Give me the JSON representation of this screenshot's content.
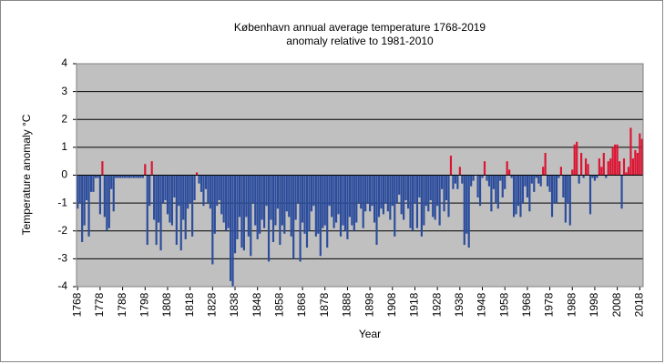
{
  "chart_data": {
    "type": "bar",
    "title": "København  annual average  temperature 1768-2019",
    "subtitle": "anomaly relative to 1981-2010",
    "x_label": "Year",
    "y_label": "Temperature anomaly °C",
    "color": "#2b4c9c",
    "positive_color": "#dc1432",
    "grid": true,
    "xlim": [
      1767.5,
      2019.5
    ],
    "ylim": [
      -4,
      4
    ],
    "yticks": [
      -4,
      -3,
      -2,
      -1,
      0,
      1,
      2,
      3,
      4
    ],
    "xticks": [
      1768,
      1778,
      1788,
      1798,
      1808,
      1818,
      1828,
      1838,
      1848,
      1858,
      1868,
      1878,
      1888,
      1898,
      1908,
      1918,
      1928,
      1938,
      1948,
      1958,
      1968,
      1978,
      1988,
      1998,
      2008,
      2018
    ],
    "x": [
      1768,
      1769,
      1770,
      1771,
      1772,
      1773,
      1774,
      1775,
      1776,
      1777,
      1778,
      1779,
      1780,
      1781,
      1782,
      1783,
      1784,
      1785,
      1786,
      1787,
      1788,
      1789,
      1790,
      1791,
      1792,
      1793,
      1794,
      1795,
      1796,
      1797,
      1798,
      1799,
      1800,
      1801,
      1802,
      1803,
      1804,
      1805,
      1806,
      1807,
      1808,
      1809,
      1810,
      1811,
      1812,
      1813,
      1814,
      1815,
      1816,
      1817,
      1818,
      1819,
      1820,
      1821,
      1822,
      1823,
      1824,
      1825,
      1826,
      1827,
      1828,
      1829,
      1830,
      1831,
      1832,
      1833,
      1834,
      1835,
      1836,
      1837,
      1838,
      1839,
      1840,
      1841,
      1842,
      1843,
      1844,
      1845,
      1846,
      1847,
      1848,
      1849,
      1850,
      1851,
      1852,
      1853,
      1854,
      1855,
      1856,
      1857,
      1858,
      1859,
      1860,
      1861,
      1862,
      1863,
      1864,
      1865,
      1866,
      1867,
      1868,
      1869,
      1870,
      1871,
      1872,
      1873,
      1874,
      1875,
      1876,
      1877,
      1878,
      1879,
      1880,
      1881,
      1882,
      1883,
      1884,
      1885,
      1886,
      1887,
      1888,
      1889,
      1890,
      1891,
      1892,
      1893,
      1894,
      1895,
      1896,
      1897,
      1898,
      1899,
      1900,
      1901,
      1902,
      1903,
      1904,
      1905,
      1906,
      1907,
      1908,
      1909,
      1910,
      1911,
      1912,
      1913,
      1914,
      1915,
      1916,
      1917,
      1918,
      1919,
      1920,
      1921,
      1922,
      1923,
      1924,
      1925,
      1926,
      1927,
      1928,
      1929,
      1930,
      1931,
      1932,
      1933,
      1934,
      1935,
      1936,
      1937,
      1938,
      1939,
      1940,
      1941,
      1942,
      1943,
      1944,
      1945,
      1946,
      1947,
      1948,
      1949,
      1950,
      1951,
      1952,
      1953,
      1954,
      1955,
      1956,
      1957,
      1958,
      1959,
      1960,
      1961,
      1962,
      1963,
      1964,
      1965,
      1966,
      1967,
      1968,
      1969,
      1970,
      1971,
      1972,
      1973,
      1974,
      1975,
      1976,
      1977,
      1978,
      1979,
      1980,
      1981,
      1982,
      1983,
      1984,
      1985,
      1986,
      1987,
      1988,
      1989,
      1990,
      1991,
      1992,
      1993,
      1994,
      1995,
      1996,
      1997,
      1998,
      1999,
      2000,
      2001,
      2002,
      2003,
      2004,
      2005,
      2006,
      2007,
      2008,
      2009,
      2010,
      2011,
      2012,
      2013,
      2014,
      2015,
      2016,
      2017,
      2018,
      2019
    ],
    "values": [
      -1.2,
      -1.0,
      -2.4,
      -1.8,
      -0.9,
      -2.2,
      -0.6,
      -0.6,
      -0.1,
      -0.1,
      -1.4,
      0.5,
      -1.5,
      -2.0,
      -1.9,
      -0.5,
      -1.3,
      -0.1,
      -0.1,
      -0.1,
      -0.1,
      -0.1,
      -0.1,
      -0.1,
      -0.1,
      -0.1,
      -0.1,
      -0.1,
      -0.1,
      -0.1,
      0.4,
      -2.5,
      -1.1,
      0.5,
      -1.6,
      -2.5,
      -1.7,
      -2.7,
      -1.0,
      -0.9,
      -1.4,
      -1.7,
      -1.8,
      -0.8,
      -2.5,
      -1.1,
      -2.7,
      -1.6,
      -2.3,
      -1.2,
      -1.0,
      -2.2,
      -0.9,
      0.1,
      -0.3,
      -0.6,
      -1.1,
      -0.5,
      -1.0,
      -1.2,
      -3.2,
      -2.1,
      -1.1,
      -0.9,
      -1.4,
      -1.7,
      -2.0,
      -1.9,
      -3.8,
      -4.0,
      -2.8,
      -2.3,
      -1.5,
      -2.6,
      -2.7,
      -1.5,
      -2.2,
      -2.9,
      -1.0,
      -1.8,
      -2.3,
      -2.1,
      -1.6,
      -1.9,
      -1.1,
      -3.1,
      -1.6,
      -2.4,
      -1.8,
      -1.2,
      -2.5,
      -1.8,
      -2.1,
      -1.3,
      -1.5,
      -2.2,
      -3.0,
      -1.6,
      -1.0,
      -3.1,
      -1.7,
      -2.1,
      -2.6,
      -2.0,
      -1.3,
      -1.1,
      -2.2,
      -2.1,
      -2.9,
      -1.9,
      -1.8,
      -2.6,
      -1.1,
      -1.5,
      -1.9,
      -1.7,
      -1.4,
      -2.2,
      -1.8,
      -2.0,
      -2.3,
      -1.5,
      -1.8,
      -2.0,
      -1.7,
      -1.0,
      -1.2,
      -1.9,
      -1.3,
      -1.0,
      -1.3,
      -1.1,
      -1.7,
      -2.5,
      -1.5,
      -1.2,
      -1.4,
      -1.0,
      -1.3,
      -1.6,
      -1.1,
      -2.2,
      -1.0,
      -0.7,
      -1.4,
      -1.6,
      -0.9,
      -1.2,
      -1.9,
      -2.0,
      -1.0,
      -1.9,
      -0.8,
      -2.2,
      -1.8,
      -1.1,
      -1.3,
      -0.9,
      -1.5,
      -1.6,
      -1.1,
      -1.8,
      -0.5,
      -1.3,
      -0.9,
      -1.5,
      0.7,
      -0.5,
      -0.3,
      -0.5,
      0.3,
      -0.3,
      -2.5,
      -2.1,
      -2.6,
      -0.4,
      -0.2,
      0.0,
      -0.8,
      -1.1,
      -0.1,
      0.5,
      -0.2,
      -0.4,
      -1.3,
      -0.5,
      -1.0,
      -1.2,
      -0.2,
      -0.8,
      -0.5,
      0.5,
      0.2,
      -0.1,
      -1.5,
      -1.4,
      -1.1,
      -1.5,
      -1.0,
      -0.4,
      -0.8,
      -1.3,
      -0.3,
      -0.6,
      -0.1,
      -0.3,
      -0.4,
      0.3,
      0.8,
      -0.4,
      -0.6,
      -1.5,
      -1.0,
      -1.0,
      -0.1,
      0.3,
      -0.8,
      -1.7,
      -1.0,
      -1.8,
      0.2,
      1.1,
      1.2,
      -0.3,
      0.8,
      -0.1,
      0.6,
      0.4,
      -1.4,
      -0.1,
      -0.2,
      -0.1,
      0.6,
      0.3,
      0.8,
      -0.1,
      0.5,
      0.6,
      1.0,
      1.1,
      1.1,
      0.5,
      -1.2,
      0.6,
      0.1,
      0.3,
      1.7,
      0.6,
      0.9,
      0.8,
      1.5,
      1.3
    ]
  }
}
